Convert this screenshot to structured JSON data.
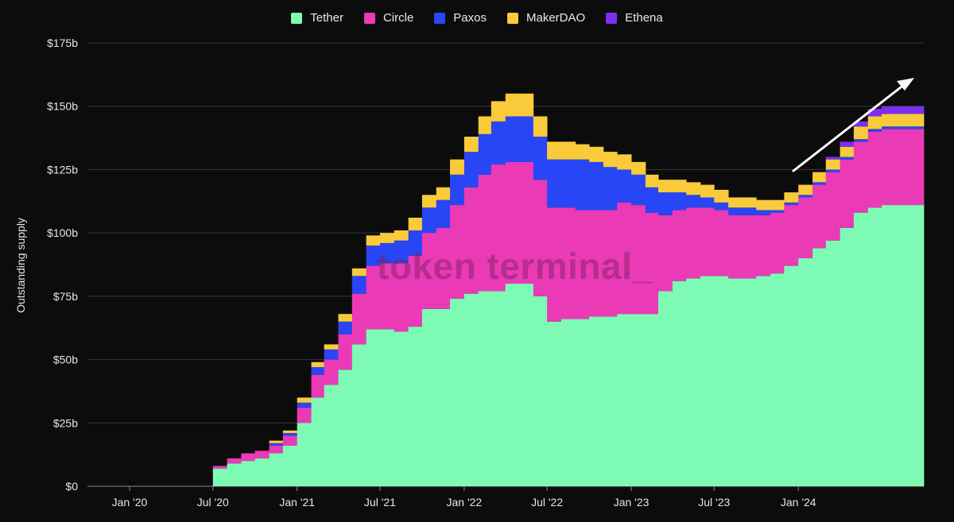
{
  "watermark": "token terminal_",
  "chart_data": {
    "type": "stacked-bar",
    "title": "",
    "xlabel": "",
    "ylabel": "Outstanding supply",
    "ylim": [
      0,
      175
    ],
    "y_unit": "billions USD",
    "grid": true,
    "legend_position": "top-center",
    "y_ticks": [
      "$0",
      "$25b",
      "$50b",
      "$75b",
      "$100b",
      "$125b",
      "$150b",
      "$175b"
    ],
    "x_ticks": [
      "Jan '20",
      "Jul '20",
      "Jan '21",
      "Jul '21",
      "Jan '22",
      "Jul '22",
      "Jan '23",
      "Jul '23",
      "Jan '24"
    ],
    "x": [
      "2020-07",
      "2020-08",
      "2020-09",
      "2020-10",
      "2020-11",
      "2020-12",
      "2021-01",
      "2021-02",
      "2021-03",
      "2021-04",
      "2021-05",
      "2021-06",
      "2021-07",
      "2021-08",
      "2021-09",
      "2021-10",
      "2021-11",
      "2021-12",
      "2022-01",
      "2022-02",
      "2022-03",
      "2022-04",
      "2022-05",
      "2022-06",
      "2022-07",
      "2022-08",
      "2022-09",
      "2022-10",
      "2022-11",
      "2022-12",
      "2023-01",
      "2023-02",
      "2023-03",
      "2023-04",
      "2023-05",
      "2023-06",
      "2023-07",
      "2023-08",
      "2023-09",
      "2023-10",
      "2023-11",
      "2023-12",
      "2024-01",
      "2024-02",
      "2024-03",
      "2024-04",
      "2024-05",
      "2024-06",
      "2024-07",
      "2024-08",
      "2024-09"
    ],
    "series": [
      {
        "name": "Tether",
        "color": "#7dfbb5",
        "values": [
          7,
          9,
          10,
          11,
          13,
          16,
          25,
          35,
          40,
          46,
          56,
          62,
          62,
          61,
          63,
          70,
          70,
          74,
          76,
          77,
          77,
          80,
          80,
          75,
          65,
          66,
          66,
          67,
          67,
          68,
          68,
          68,
          77,
          81,
          82,
          83,
          83,
          82,
          82,
          83,
          84,
          87,
          90,
          94,
          97,
          102,
          108,
          110,
          111,
          111,
          111
        ]
      },
      {
        "name": "Circle",
        "color": "#ea3ab6",
        "values": [
          1,
          2,
          3,
          3,
          3,
          4,
          6,
          9,
          10,
          14,
          20,
          25,
          26,
          27,
          28,
          30,
          32,
          37,
          42,
          46,
          50,
          48,
          48,
          46,
          45,
          44,
          43,
          42,
          42,
          44,
          43,
          40,
          30,
          28,
          28,
          27,
          26,
          25,
          25,
          24,
          24,
          24,
          24,
          25,
          27,
          27,
          28,
          30,
          30,
          30,
          30
        ]
      },
      {
        "name": "Paxos",
        "color": "#2846f5",
        "values": [
          0,
          0,
          0,
          0,
          1,
          1,
          2,
          3,
          4,
          5,
          7,
          8,
          8,
          9,
          10,
          10,
          11,
          12,
          14,
          16,
          17,
          18,
          18,
          17,
          19,
          19,
          20,
          19,
          17,
          13,
          12,
          10,
          9,
          7,
          5,
          4,
          3,
          3,
          3,
          2,
          1,
          1,
          1,
          1,
          1,
          1,
          1,
          1,
          1,
          1,
          1
        ]
      },
      {
        "name": "MakerDAO",
        "color": "#f9cb3a",
        "values": [
          0,
          0,
          0,
          0,
          1,
          1,
          2,
          2,
          2,
          3,
          3,
          4,
          4,
          4,
          5,
          5,
          5,
          6,
          6,
          7,
          8,
          9,
          9,
          8,
          7,
          7,
          6,
          6,
          6,
          6,
          5,
          5,
          5,
          5,
          5,
          5,
          5,
          4,
          4,
          4,
          4,
          4,
          4,
          4,
          4,
          4,
          5,
          5,
          5,
          5,
          5
        ]
      },
      {
        "name": "Ethena",
        "color": "#7c2ff0",
        "values": [
          0,
          0,
          0,
          0,
          0,
          0,
          0,
          0,
          0,
          0,
          0,
          0,
          0,
          0,
          0,
          0,
          0,
          0,
          0,
          0,
          0,
          0,
          0,
          0,
          0,
          0,
          0,
          0,
          0,
          0,
          0,
          0,
          0,
          0,
          0,
          0,
          0,
          0,
          0,
          0,
          0,
          0,
          0,
          0,
          1,
          2,
          2,
          3,
          3,
          3,
          3
        ]
      }
    ]
  }
}
